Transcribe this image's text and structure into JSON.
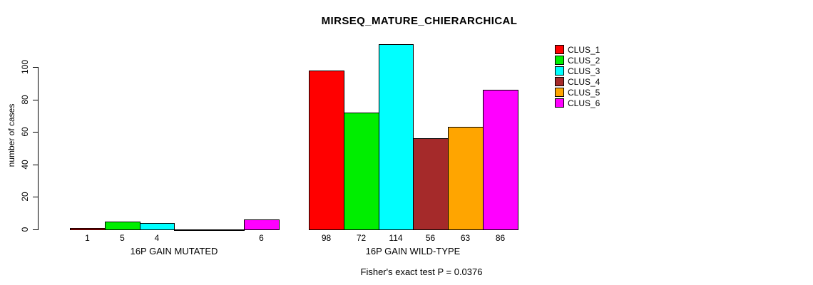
{
  "chart_data": {
    "type": "bar",
    "title": "MIRSEQ_MATURE_CHIERARCHICAL",
    "ylabel": "number of cases",
    "yticks": [
      "0",
      "20",
      "40",
      "60",
      "80",
      "100"
    ],
    "ytick_values": [
      0,
      20,
      40,
      60,
      80,
      100
    ],
    "ylim": [
      0,
      114
    ],
    "grid": false,
    "legend_position": "right",
    "series": [
      {
        "name": "CLUS_1",
        "color": "#ff0000"
      },
      {
        "name": "CLUS_2",
        "color": "#00ee00"
      },
      {
        "name": "CLUS_3",
        "color": "#00ffff"
      },
      {
        "name": "CLUS_4",
        "color": "#a52a2a"
      },
      {
        "name": "CLUS_5",
        "color": "#ffa500"
      },
      {
        "name": "CLUS_6",
        "color": "#ff00ff"
      }
    ],
    "groups": [
      {
        "label": "16P GAIN MUTATED",
        "values": [
          1,
          5,
          4,
          0,
          0,
          6
        ],
        "bar_labels": [
          "1",
          "5",
          "4",
          "",
          "",
          "6"
        ]
      },
      {
        "label": "16P GAIN WILD-TYPE",
        "values": [
          98,
          72,
          114,
          56,
          63,
          86
        ],
        "bar_labels": [
          "98",
          "72",
          "114",
          "56",
          "63",
          "86"
        ]
      }
    ],
    "annotation": "Fisher's exact test P = 0.0376"
  }
}
